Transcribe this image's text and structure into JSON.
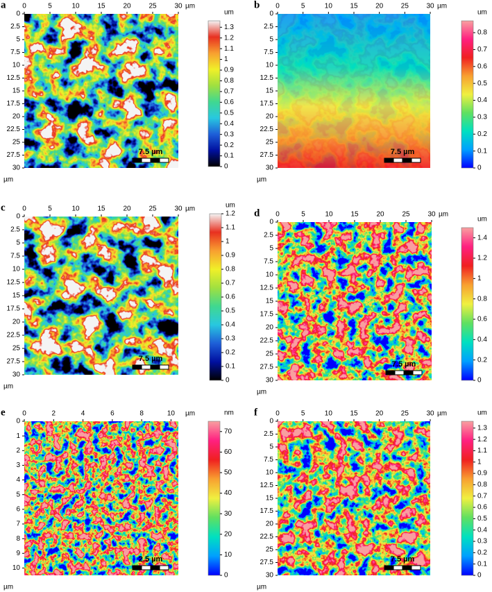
{
  "chart_data": [
    {
      "type": "heatmap",
      "panel": "a",
      "xlim": [
        0,
        30
      ],
      "xticks": [
        0,
        5,
        10,
        15,
        20,
        25,
        30
      ],
      "ylim": [
        0,
        30
      ],
      "yticks": [
        0,
        2.5,
        5,
        7.5,
        10,
        12.5,
        15,
        17.5,
        20,
        22.5,
        25,
        27.5,
        30
      ],
      "x_unit": "µm",
      "y_unit": "µm",
      "scalebar": "7.5 µm",
      "colorbar": {
        "unit": "um",
        "lim": [
          0,
          1.36
        ],
        "ticks": [
          0,
          0.1,
          0.2,
          0.3,
          0.4,
          0.5,
          0.6,
          0.7,
          0.8,
          0.9,
          1,
          1.1,
          1.2,
          1.3
        ]
      },
      "colormap": [
        "#000000",
        "#0010a0",
        "#1e5fd8",
        "#28c8e0",
        "#40d890",
        "#a0e040",
        "#f0f028",
        "#f8a030",
        "#e83020",
        "#f4f4f4"
      ]
    },
    {
      "type": "heatmap",
      "panel": "b",
      "xlim": [
        0,
        30
      ],
      "xticks": [
        0,
        5,
        10,
        15,
        20,
        25,
        30
      ],
      "ylim": [
        0,
        30
      ],
      "yticks": [
        0,
        2.5,
        5,
        7.5,
        10,
        12.5,
        15,
        17.5,
        20,
        22.5,
        25,
        27.5,
        30
      ],
      "x_unit": "µm",
      "y_unit": "µm",
      "scalebar": "7.5 µm",
      "colorbar": {
        "unit": "um",
        "lim": [
          0,
          0.87
        ],
        "ticks": [
          0,
          0.1,
          0.2,
          0.3,
          0.4,
          0.5,
          0.6,
          0.7,
          0.8
        ]
      },
      "colormap": [
        "#0000ff",
        "#00a0ff",
        "#00e0c0",
        "#60e060",
        "#f0f040",
        "#f8a030",
        "#f02020",
        "#ff2080",
        "#f8a0a0"
      ]
    },
    {
      "type": "heatmap",
      "panel": "c",
      "xlim": [
        0,
        30
      ],
      "xticks": [
        0,
        5,
        10,
        15,
        20,
        25,
        30
      ],
      "ylim": [
        0,
        30
      ],
      "yticks": [
        0,
        2.5,
        5,
        7.5,
        10,
        12.5,
        15,
        17.5,
        20,
        22.5,
        25,
        27.5,
        30
      ],
      "x_unit": "µm",
      "y_unit": "µm",
      "scalebar": "7.5 µm",
      "colorbar": {
        "unit": "um",
        "lim": [
          0,
          1.2
        ],
        "ticks": [
          0,
          0.1,
          0.2,
          0.3,
          0.4,
          0.5,
          0.6,
          0.7,
          0.8,
          0.9,
          1,
          1.1,
          1.2
        ]
      },
      "colormap": [
        "#000000",
        "#0010a0",
        "#1e5fd8",
        "#28c8e0",
        "#40d890",
        "#a0e040",
        "#f0f028",
        "#f8a030",
        "#e83020",
        "#f4f4f4"
      ]
    },
    {
      "type": "heatmap",
      "panel": "d",
      "xlim": [
        0,
        30
      ],
      "xticks": [
        0,
        5,
        10,
        15,
        20,
        25,
        30
      ],
      "ylim": [
        0,
        30
      ],
      "yticks": [
        0,
        2.5,
        5,
        7.5,
        10,
        12.5,
        15,
        17.5,
        20,
        22.5,
        25,
        27.5,
        30
      ],
      "x_unit": "µm",
      "y_unit": "µm",
      "scalebar": "7.5 µm",
      "colorbar": {
        "unit": "um",
        "lim": [
          0,
          1.5
        ],
        "ticks": [
          0,
          0.2,
          0.4,
          0.6,
          0.8,
          1,
          1.2,
          1.4
        ]
      },
      "colormap": [
        "#0000ff",
        "#00a0ff",
        "#00e0c0",
        "#60e060",
        "#f0f040",
        "#f8a030",
        "#f02020",
        "#ff2080",
        "#f8a0a0"
      ]
    },
    {
      "type": "heatmap",
      "panel": "e",
      "xlim": [
        0,
        10.5
      ],
      "xticks": [
        0,
        2,
        4,
        6,
        8,
        10
      ],
      "ylim": [
        0,
        10.5
      ],
      "yticks": [
        0,
        1,
        2,
        3,
        4,
        5,
        6,
        7,
        8,
        9,
        10
      ],
      "x_unit": "µm",
      "y_unit": "µm",
      "scalebar": "2.5 µm",
      "colorbar": {
        "unit": "nm",
        "lim": [
          0,
          75
        ],
        "ticks": [
          0,
          10,
          20,
          30,
          40,
          50,
          60,
          70
        ]
      },
      "colormap": [
        "#0000ff",
        "#00a0ff",
        "#00e0c0",
        "#60e060",
        "#f0f040",
        "#f8a030",
        "#f02020",
        "#ff2080",
        "#f8a0a0"
      ]
    },
    {
      "type": "heatmap",
      "panel": "f",
      "xlim": [
        0,
        30
      ],
      "xticks": [
        0,
        5,
        10,
        15,
        20,
        25,
        30
      ],
      "ylim": [
        0,
        30
      ],
      "yticks": [
        0,
        2.5,
        5,
        7.5,
        10,
        12.5,
        15,
        17.5,
        20,
        22.5,
        25,
        27.5,
        30
      ],
      "x_unit": "µm",
      "y_unit": "µm",
      "scalebar": "7.5 µm",
      "colorbar": {
        "unit": "um",
        "lim": [
          0,
          1.36
        ],
        "ticks": [
          0,
          0.1,
          0.2,
          0.3,
          0.4,
          0.5,
          0.6,
          0.7,
          0.8,
          0.9,
          1,
          1.1,
          1.2,
          1.3
        ]
      },
      "colormap": [
        "#0000ff",
        "#00a0ff",
        "#00e0c0",
        "#60e060",
        "#f0f040",
        "#f8a030",
        "#f02020",
        "#ff2080",
        "#f8a0a0"
      ]
    }
  ]
}
